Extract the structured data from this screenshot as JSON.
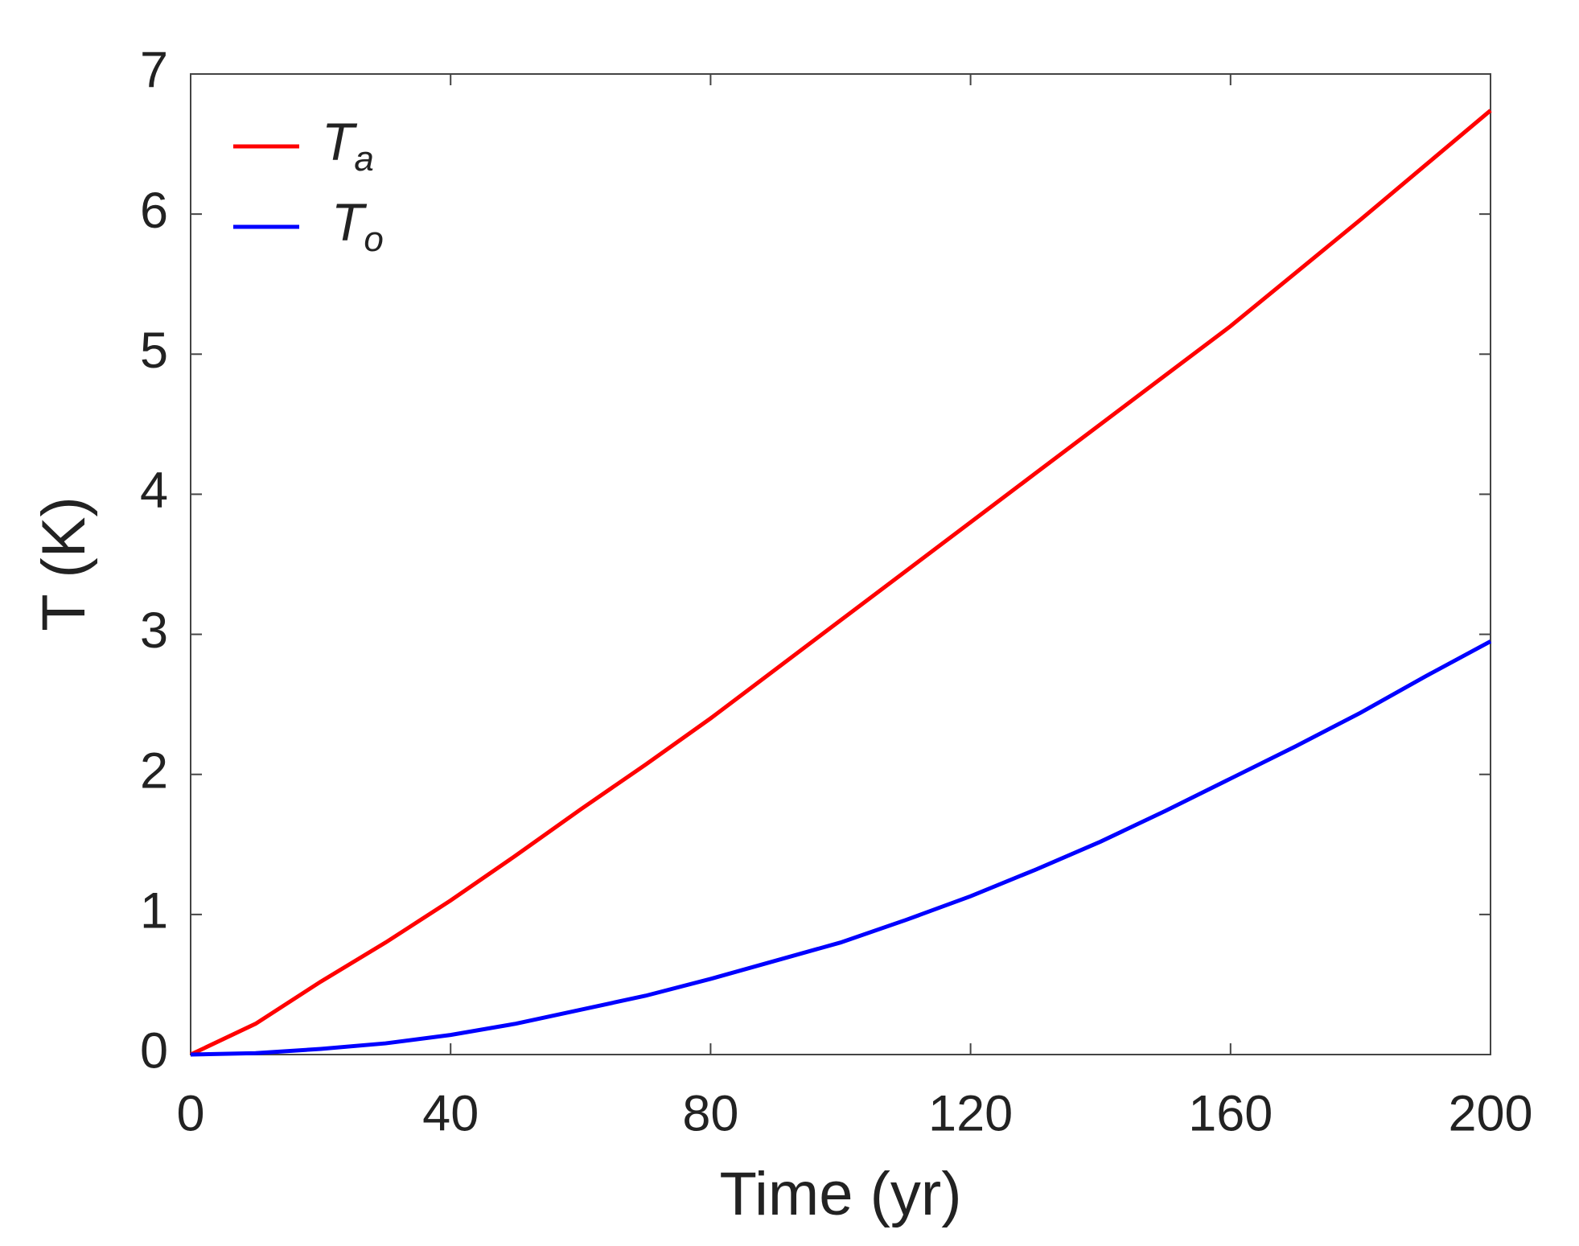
{
  "chart_data": {
    "type": "line",
    "xlabel": "Time (yr)",
    "ylabel": "T (K)",
    "x": [
      0,
      10,
      20,
      30,
      40,
      50,
      60,
      70,
      80,
      90,
      100,
      110,
      120,
      130,
      140,
      150,
      160,
      170,
      180,
      190,
      200
    ],
    "series": [
      {
        "name": "Ta",
        "color": "#ff0000",
        "values": [
          0,
          0.22,
          0.52,
          0.8,
          1.1,
          1.42,
          1.75,
          2.07,
          2.4,
          2.75,
          3.1,
          3.45,
          3.8,
          4.15,
          4.5,
          4.85,
          5.2,
          5.58,
          5.96,
          6.35,
          6.74
        ]
      },
      {
        "name": "To",
        "color": "#0000ff",
        "values": [
          0,
          0.01,
          0.04,
          0.08,
          0.14,
          0.22,
          0.32,
          0.42,
          0.54,
          0.67,
          0.8,
          0.96,
          1.13,
          1.32,
          1.52,
          1.74,
          1.97,
          2.2,
          2.44,
          2.7,
          2.95
        ]
      }
    ],
    "xlim": [
      0,
      200
    ],
    "xticks": [
      0,
      40,
      80,
      120,
      160,
      200
    ],
    "ylim": [
      0,
      7
    ],
    "yticks": [
      0,
      1,
      2,
      3,
      4,
      5,
      6,
      7
    ],
    "legend": "upper-left"
  }
}
